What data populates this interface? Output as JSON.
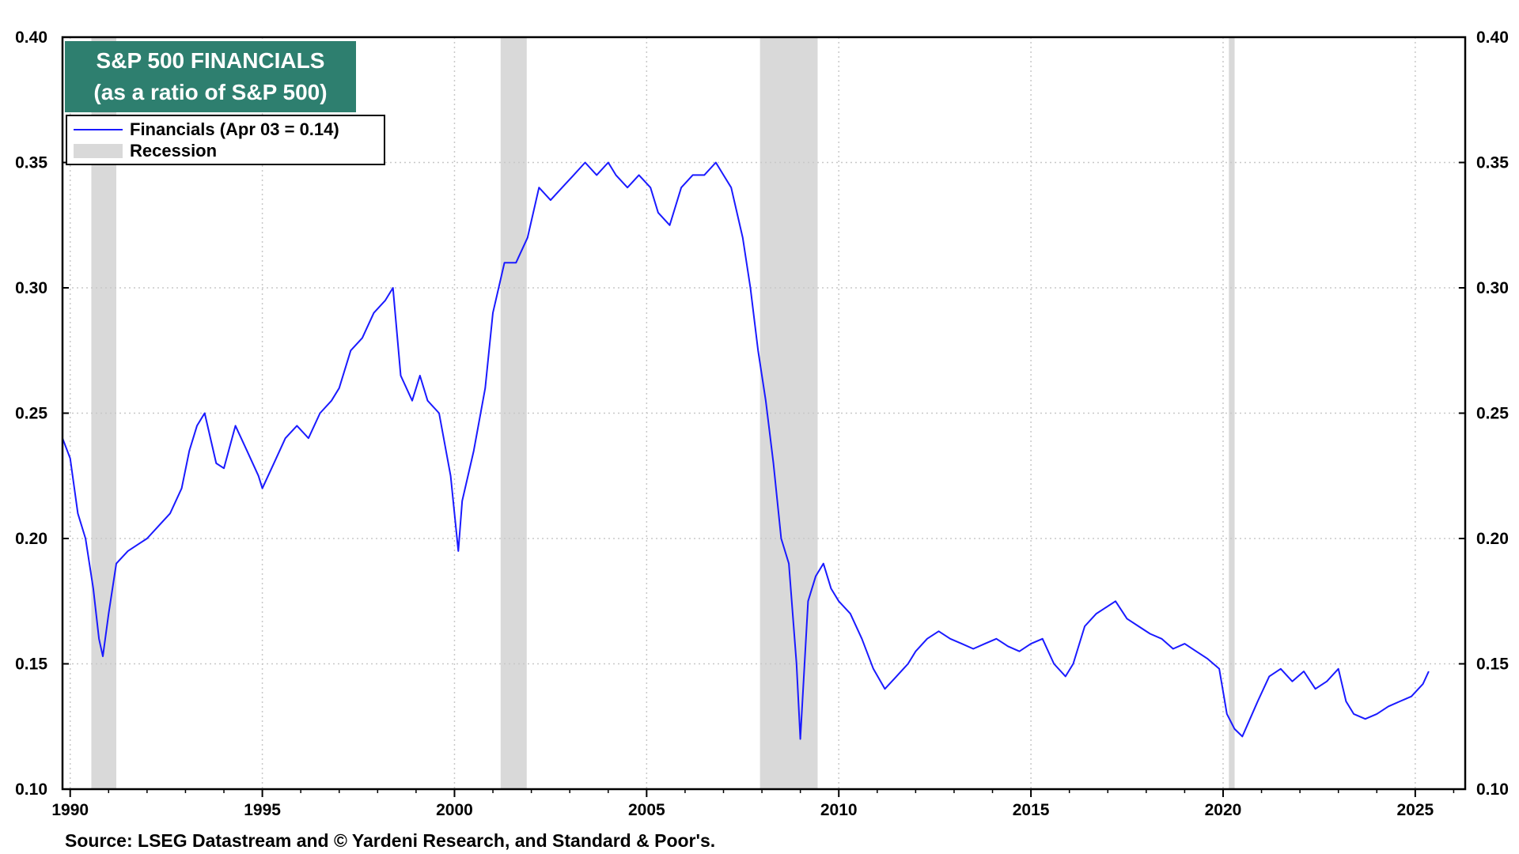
{
  "title_line1": "S&P 500 FINANCIALS",
  "title_line2": "(as a ratio of S&P 500)",
  "legend": {
    "series_label": "Financials (Apr 03 = 0.14)",
    "recession_label": "Recession"
  },
  "source": "Source: LSEG Datastream and © Yardeni Research, and Standard & Poor's.",
  "colors": {
    "series": "#1a1aff",
    "recession": "#d9d9d9",
    "title_bg": "#2e7f6f"
  },
  "chart_data": {
    "type": "line",
    "title": "S&P 500 FINANCIALS (as a ratio of S&P 500)",
    "xlim": [
      1989.8,
      2026.3
    ],
    "ylim": [
      0.1,
      0.4
    ],
    "y_ticks": [
      "0.10",
      "0.15",
      "0.20",
      "0.25",
      "0.30",
      "0.35",
      "0.40"
    ],
    "x_ticks": [
      "1990",
      "1995",
      "2000",
      "2005",
      "2010",
      "2015",
      "2020",
      "2025"
    ],
    "grid": true,
    "legend_position": "top-left",
    "recessions": [
      [
        1990.55,
        1991.2
      ],
      [
        2001.2,
        2001.88
      ],
      [
        2007.95,
        2009.45
      ],
      [
        2020.15,
        2020.3
      ]
    ],
    "series": [
      {
        "name": "Financials (Apr 03 = 0.14)",
        "x": [
          1989.8,
          1990.0,
          1990.2,
          1990.4,
          1990.6,
          1990.75,
          1990.85,
          1991.0,
          1991.2,
          1991.5,
          1991.8,
          1992.0,
          1992.3,
          1992.6,
          1992.9,
          1993.1,
          1993.3,
          1993.5,
          1993.8,
          1994.0,
          1994.3,
          1994.6,
          1994.9,
          1995.0,
          1995.3,
          1995.6,
          1995.9,
          1996.2,
          1996.5,
          1996.8,
          1997.0,
          1997.3,
          1997.6,
          1997.9,
          1998.2,
          1998.4,
          1998.6,
          1998.9,
          1999.1,
          1999.3,
          1999.6,
          1999.9,
          2000.1,
          2000.2,
          2000.5,
          2000.8,
          2001.0,
          2001.3,
          2001.6,
          2001.9,
          2002.2,
          2002.5,
          2002.8,
          2003.1,
          2003.4,
          2003.7,
          2004.0,
          2004.2,
          2004.5,
          2004.8,
          2005.1,
          2005.3,
          2005.6,
          2005.9,
          2006.2,
          2006.5,
          2006.8,
          2007.0,
          2007.2,
          2007.5,
          2007.7,
          2007.9,
          2008.1,
          2008.3,
          2008.5,
          2008.7,
          2008.9,
          2009.0,
          2009.2,
          2009.4,
          2009.6,
          2009.8,
          2010.0,
          2010.3,
          2010.6,
          2010.9,
          2011.2,
          2011.5,
          2011.8,
          2012.0,
          2012.3,
          2012.6,
          2012.9,
          2013.2,
          2013.5,
          2013.8,
          2014.1,
          2014.4,
          2014.7,
          2015.0,
          2015.3,
          2015.6,
          2015.9,
          2016.1,
          2016.4,
          2016.7,
          2016.9,
          2017.2,
          2017.5,
          2017.8,
          2018.1,
          2018.4,
          2018.7,
          2019.0,
          2019.3,
          2019.6,
          2019.9,
          2020.1,
          2020.3,
          2020.5,
          2020.7,
          2020.9,
          2021.2,
          2021.5,
          2021.8,
          2022.1,
          2022.4,
          2022.7,
          2023.0,
          2023.2,
          2023.4,
          2023.7,
          2024.0,
          2024.3,
          2024.6,
          2024.9,
          2025.2,
          2025.35
        ],
        "y": [
          0.24,
          0.232,
          0.21,
          0.2,
          0.18,
          0.16,
          0.153,
          0.17,
          0.19,
          0.195,
          0.198,
          0.2,
          0.205,
          0.21,
          0.22,
          0.235,
          0.245,
          0.25,
          0.23,
          0.228,
          0.245,
          0.235,
          0.225,
          0.22,
          0.23,
          0.24,
          0.245,
          0.24,
          0.25,
          0.255,
          0.26,
          0.275,
          0.28,
          0.29,
          0.295,
          0.3,
          0.265,
          0.255,
          0.265,
          0.255,
          0.25,
          0.225,
          0.195,
          0.215,
          0.235,
          0.26,
          0.29,
          0.31,
          0.31,
          0.32,
          0.34,
          0.335,
          0.34,
          0.345,
          0.35,
          0.345,
          0.35,
          0.345,
          0.34,
          0.345,
          0.34,
          0.33,
          0.325,
          0.34,
          0.345,
          0.345,
          0.35,
          0.345,
          0.34,
          0.32,
          0.3,
          0.275,
          0.255,
          0.23,
          0.2,
          0.19,
          0.15,
          0.12,
          0.175,
          0.185,
          0.19,
          0.18,
          0.175,
          0.17,
          0.16,
          0.148,
          0.14,
          0.145,
          0.15,
          0.155,
          0.16,
          0.163,
          0.16,
          0.158,
          0.156,
          0.158,
          0.16,
          0.157,
          0.155,
          0.158,
          0.16,
          0.15,
          0.145,
          0.15,
          0.165,
          0.17,
          0.172,
          0.175,
          0.168,
          0.165,
          0.162,
          0.16,
          0.156,
          0.158,
          0.155,
          0.152,
          0.148,
          0.13,
          0.124,
          0.121,
          0.128,
          0.135,
          0.145,
          0.148,
          0.143,
          0.147,
          0.14,
          0.143,
          0.148,
          0.135,
          0.13,
          0.128,
          0.13,
          0.133,
          0.135,
          0.137,
          0.142,
          0.147
        ]
      }
    ]
  }
}
